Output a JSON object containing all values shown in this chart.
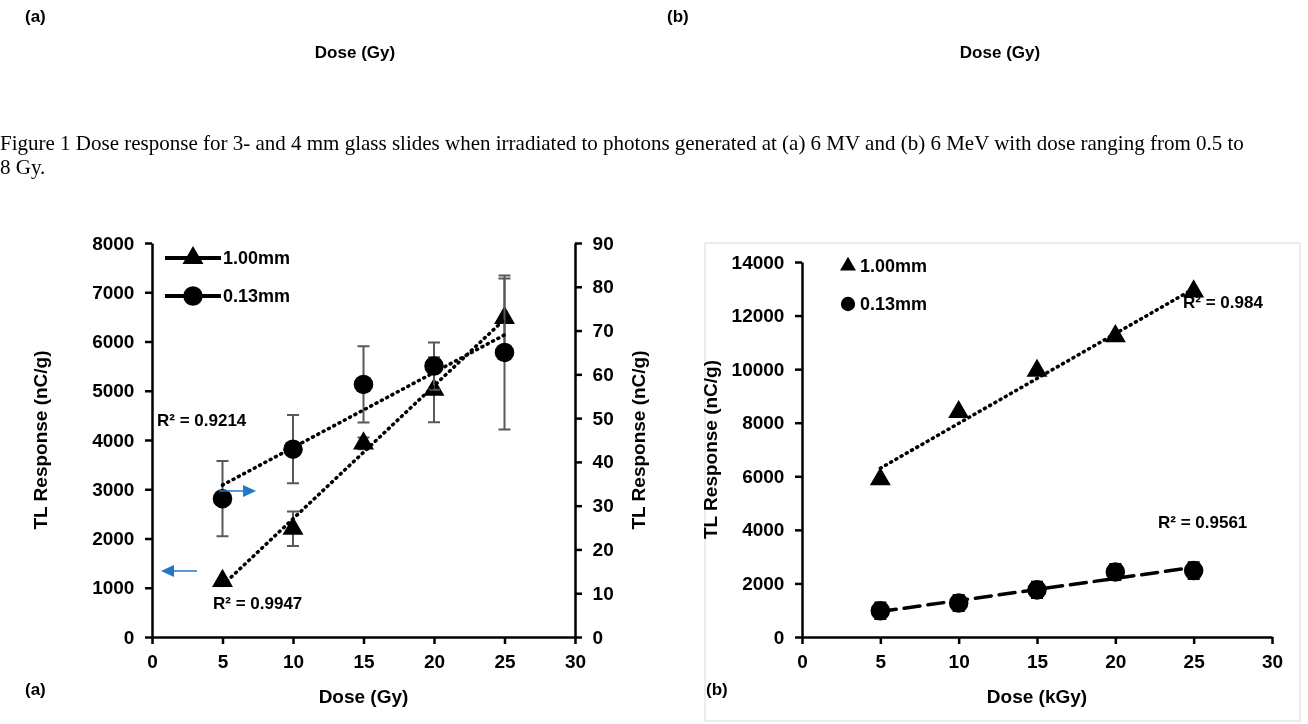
{
  "chart_data": [
    {
      "type": "scatter",
      "xlabel": "Dose (Gy)",
      "ylabel": "TL Response (nC/g)",
      "y2label": "TL Response (nC/g)",
      "xlim": [
        0,
        30
      ],
      "xticks": [
        0,
        5,
        10,
        15,
        20,
        25,
        30
      ],
      "ylim": [
        0,
        8000
      ],
      "yticks": [
        0,
        1000,
        2000,
        3000,
        4000,
        5000,
        6000,
        7000,
        8000
      ],
      "y2lim": [
        0,
        90
      ],
      "y2ticks": [
        0,
        10,
        20,
        30,
        40,
        50,
        60,
        70,
        80,
        90
      ],
      "grid": false,
      "legend": "top left",
      "series": [
        {
          "name": "1.00mm",
          "marker": "triangle",
          "color": "#000000",
          "x": [
            5,
            10,
            15,
            20,
            25
          ],
          "values": [
            1140,
            2200,
            3930,
            5020,
            6480
          ],
          "errors": [
            null,
            350,
            120,
            660,
            800
          ]
        },
        {
          "name": "0.13mm",
          "marker": "circle",
          "axis": "y2",
          "color": "#000000",
          "x": [
            5,
            10,
            15,
            20,
            25
          ],
          "values": [
            31.6,
            42.9,
            57.7,
            61.9,
            65.0
          ],
          "errors": [
            8.6,
            7.8,
            8.7,
            5.4,
            17.6
          ]
        },
        {
          "type": "line",
          "line_style": "dotted",
          "color": "#000000",
          "x": [
            5,
            25
          ],
          "values": [
            1050,
            6450
          ]
        },
        {
          "type": "line",
          "line_style": "dotted",
          "axis": "y2",
          "color": "#000000",
          "x": [
            5,
            25
          ],
          "values": [
            34.7,
            69.0
          ]
        }
      ],
      "annotations": [
        "(a)",
        "Dose (Gy)",
        "Figure 1 Dose response for 3- and 4 mm glass slides when irradiated to photons generated at (a) 6 MV and (b) 6 MeV with dose ranging from 0.5 to 8 Gy.",
        "(a)",
        "R² = 0.9214",
        "R² = 0.9947"
      ]
    },
    {
      "type": "scatter",
      "xlabel": "Dose (kGy)",
      "ylabel": "TL Response (nC/g)",
      "xlim": [
        0,
        30
      ],
      "xticks": [
        0,
        5,
        10,
        15,
        20,
        25,
        30
      ],
      "ylim": [
        0,
        14000
      ],
      "yticks": [
        0,
        2000,
        4000,
        6000,
        8000,
        10000,
        12000,
        14000
      ],
      "grid": false,
      "legend": "top left",
      "series": [
        {
          "name": "1.00mm",
          "marker": "triangle",
          "color": "#000000",
          "x": [
            5,
            10,
            15,
            20,
            25
          ],
          "values": [
            5890,
            8400,
            9940,
            11230,
            12900
          ]
        },
        {
          "name": "0.13mm",
          "marker": "circle",
          "color": "#000000",
          "x": [
            5,
            10,
            15,
            20,
            25
          ],
          "values": [
            980,
            1270,
            1760,
            2430,
            2480
          ],
          "errors": [
            310,
            300,
            300,
            300,
            310
          ]
        },
        {
          "type": "line",
          "line_style": "dotted",
          "color": "#000000",
          "x": [
            5,
            25
          ],
          "values": [
            6300,
            13000
          ]
        },
        {
          "type": "line",
          "line_style": "dashed",
          "color": "#000000",
          "x": [
            5,
            25
          ],
          "values": [
            950,
            2600
          ]
        }
      ],
      "annotations": [
        "(b)",
        "Dose (Gy)",
        "(b)",
        "R² = 0.984",
        "R² = 0.9561"
      ]
    }
  ]
}
